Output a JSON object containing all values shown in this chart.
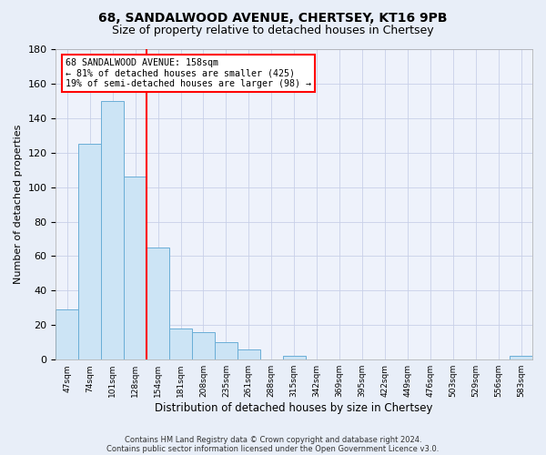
{
  "title1": "68, SANDALWOOD AVENUE, CHERTSEY, KT16 9PB",
  "title2": "Size of property relative to detached houses in Chertsey",
  "xlabel": "Distribution of detached houses by size in Chertsey",
  "ylabel": "Number of detached properties",
  "bin_labels": [
    "47sqm",
    "74sqm",
    "101sqm",
    "128sqm",
    "154sqm",
    "181sqm",
    "208sqm",
    "235sqm",
    "261sqm",
    "288sqm",
    "315sqm",
    "342sqm",
    "369sqm",
    "395sqm",
    "422sqm",
    "449sqm",
    "476sqm",
    "503sqm",
    "529sqm",
    "556sqm",
    "583sqm"
  ],
  "bin_values": [
    29,
    125,
    150,
    106,
    65,
    18,
    16,
    10,
    6,
    0,
    2,
    0,
    0,
    0,
    0,
    0,
    0,
    0,
    0,
    0,
    2
  ],
  "bar_color_fill": "#cce4f5",
  "bar_color_edge": "#6aaed6",
  "property_line_color": "red",
  "property_line_idx": 3.5,
  "annotation_line1": "68 SANDALWOOD AVENUE: 158sqm",
  "annotation_line2": "← 81% of detached houses are smaller (425)",
  "annotation_line3": "19% of semi-detached houses are larger (98) →",
  "ylim": [
    0,
    180
  ],
  "yticks": [
    0,
    20,
    40,
    60,
    80,
    100,
    120,
    140,
    160,
    180
  ],
  "footnote1": "Contains HM Land Registry data © Crown copyright and database right 2024.",
  "footnote2": "Contains public sector information licensed under the Open Government Licence v3.0.",
  "fig_facecolor": "#e8eef8",
  "ax_facecolor": "#eef2fb",
  "grid_color": "#c8d0e8",
  "title1_fontsize": 10,
  "title2_fontsize": 9
}
